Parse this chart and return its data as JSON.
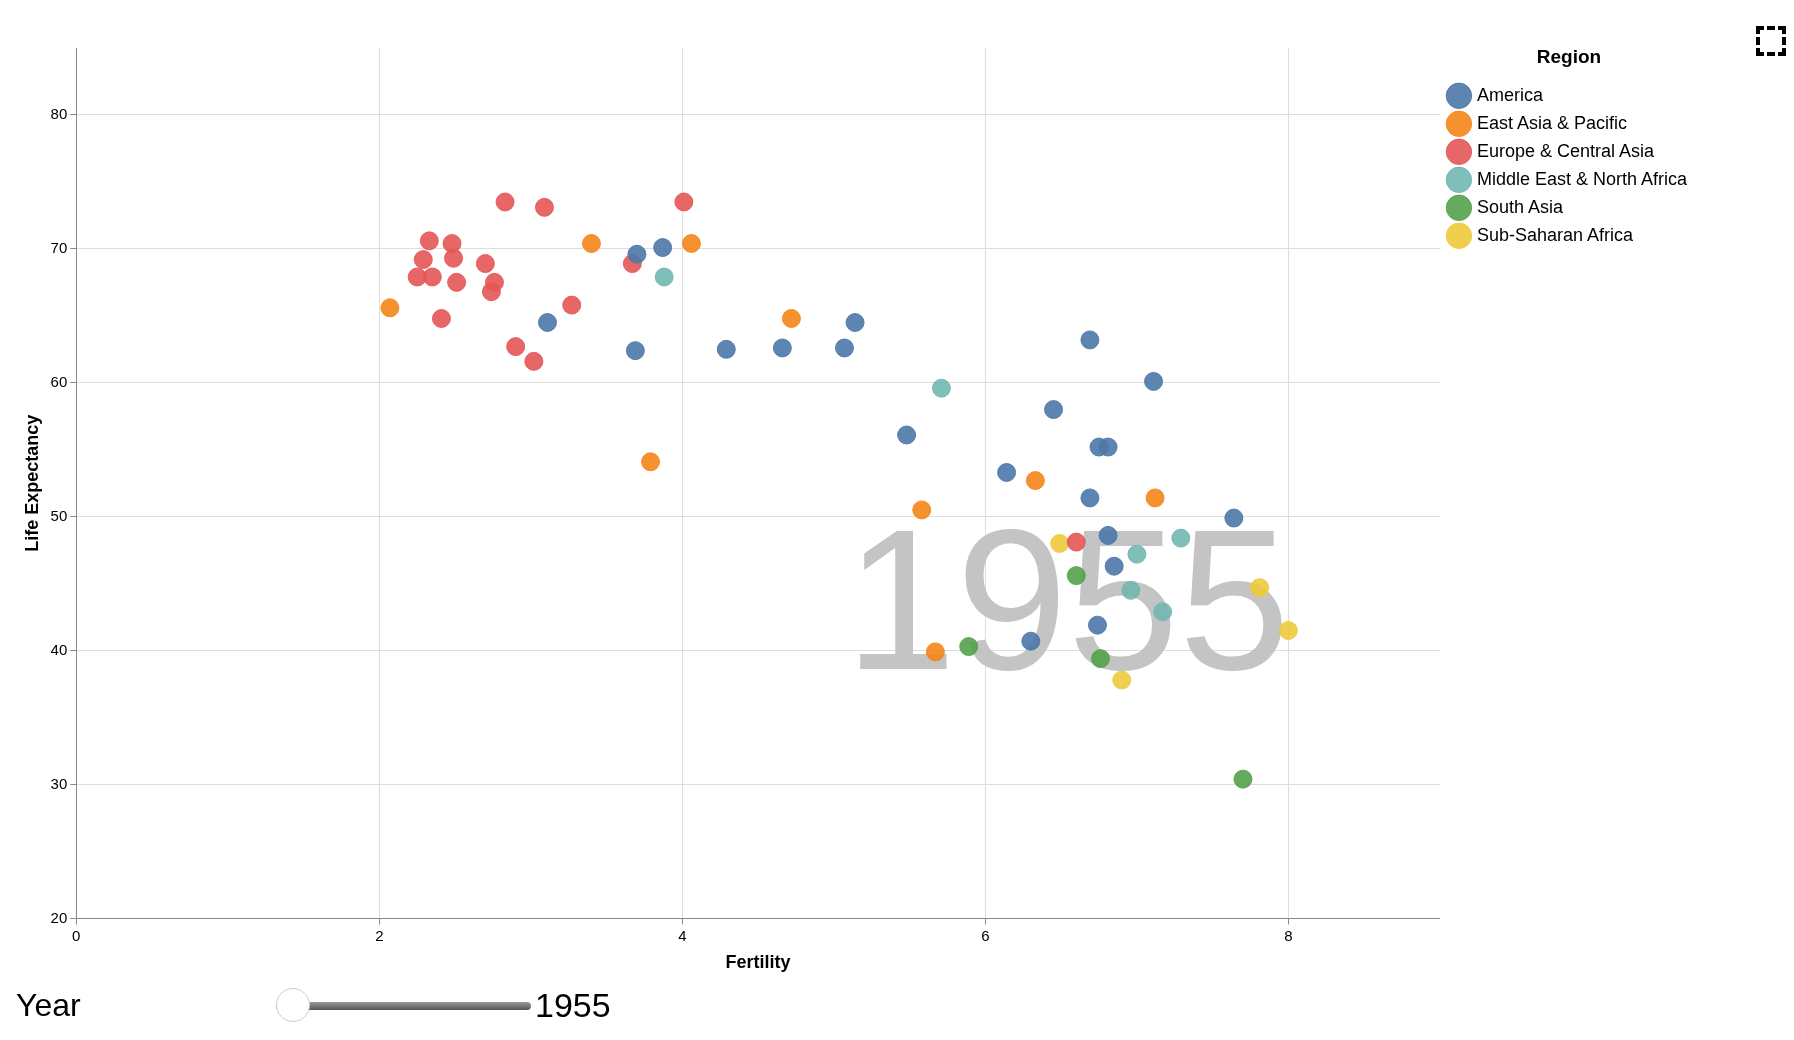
{
  "chart_data": {
    "type": "scatter",
    "xlabel": "Fertility",
    "ylabel": "Life Expectancy",
    "legend_title": "Region",
    "legend": "top right",
    "grid": true,
    "marker": "circle",
    "xlim": [
      0,
      9
    ],
    "xticks": [
      0,
      2,
      4,
      6,
      8
    ],
    "ylim": [
      20,
      85
    ],
    "yticks": [
      20,
      30,
      40,
      50,
      60,
      70,
      80
    ],
    "annotations": [
      "1955",
      "Year",
      "1955"
    ],
    "series": [
      {
        "name": "America",
        "color": "#4c78a8",
        "x": [
          3.7,
          3.87,
          3.11,
          3.69,
          4.29,
          4.66,
          5.07,
          5.14,
          6.69,
          7.11,
          6.45,
          5.48,
          6.75,
          6.81,
          6.14,
          6.69,
          7.64,
          6.81,
          6.85,
          6.74,
          6.3
        ],
        "values": [
          69.6,
          70.1,
          64.5,
          62.4,
          62.5,
          62.6,
          62.6,
          64.5,
          63.2,
          60.1,
          58,
          56.1,
          55.2,
          55.2,
          53.3,
          51.4,
          49.9,
          48.6,
          46.3,
          41.9,
          40.7
        ]
      },
      {
        "name": "East Asia & Pacific",
        "color": "#f58518",
        "x": [
          2.07,
          3.4,
          4.06,
          4.72,
          3.79,
          5.58,
          6.33,
          7.12,
          5.67
        ],
        "values": [
          65.6,
          70.4,
          70.4,
          64.8,
          54.1,
          50.5,
          52.7,
          51.4,
          39.9
        ]
      },
      {
        "name": "Europe & Central Asia",
        "color": "#e45756",
        "x": [
          2.83,
          3.09,
          4.01,
          2.33,
          2.48,
          2.29,
          2.49,
          2.7,
          2.25,
          2.35,
          2.51,
          2.76,
          2.74,
          2.41,
          3.27,
          2.9,
          3.02,
          3.67,
          6.6
        ],
        "values": [
          73.5,
          73.1,
          73.5,
          70.6,
          70.4,
          69.2,
          69.3,
          68.9,
          67.9,
          67.9,
          67.5,
          67.5,
          66.8,
          64.8,
          65.8,
          62.7,
          61.6,
          68.9,
          48.1
        ]
      },
      {
        "name": "Middle East & North Africa",
        "color": "#72b7b2",
        "x": [
          3.88,
          5.71,
          7,
          7.29,
          6.96,
          7.17
        ],
        "values": [
          67.9,
          59.6,
          47.2,
          48.4,
          44.5,
          42.9
        ]
      },
      {
        "name": "South Asia",
        "color": "#54a24b",
        "x": [
          6.6,
          5.89,
          6.76,
          7.7
        ],
        "values": [
          45.6,
          40.3,
          39.4,
          30.4
        ]
      },
      {
        "name": "Sub-Saharan Africa",
        "color": "#eeca3b",
        "x": [
          6.49,
          7.81,
          8,
          6.9
        ],
        "values": [
          48,
          44.7,
          41.5,
          37.8
        ]
      }
    ]
  }
}
